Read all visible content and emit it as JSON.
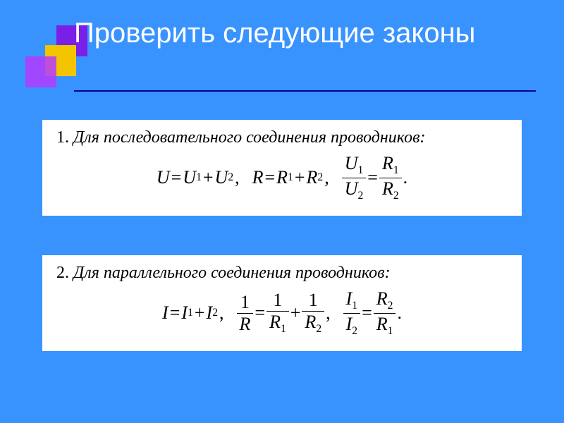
{
  "slide": {
    "title": "Проверить следующие законы",
    "background_color": "#3993ff",
    "underline_color": "#000099",
    "card_bg": "#ffffff",
    "logo": {
      "purple1": "#7a1fe8",
      "purple2": "#b43aff",
      "yellow": "#f2c500"
    },
    "title_fontsize": 40,
    "body_fontsize": 24,
    "eq_fontsize": 26
  },
  "card1": {
    "heading_num": "1.",
    "heading_text": "Для последовательного соединения проводников:",
    "items": {
      "u_left": "U",
      "u_r1": "U",
      "u_r2": "U",
      "r_left": "R",
      "r_r1": "R",
      "r_r2": "R",
      "urat_num": "U",
      "urat_den": "U",
      "rrat_num": "R",
      "rrat_den": "R",
      "sub1": "1",
      "sub2": "2",
      "eq": "=",
      "plus": "+",
      "comma": ",",
      "dot": "."
    }
  },
  "card2": {
    "heading_num": "2.",
    "heading_text": "Для параллельного соединения проводников:",
    "items": {
      "i_left": "I",
      "i_r1": "I",
      "i_r2": "I",
      "one": "1",
      "R": "R",
      "sub1": "1",
      "sub2": "2",
      "irat_num": "I",
      "irat_den": "I",
      "rrat_num": "R",
      "rrat_den": "R",
      "eq": "=",
      "plus": "+",
      "comma": ",",
      "dot": "."
    }
  }
}
